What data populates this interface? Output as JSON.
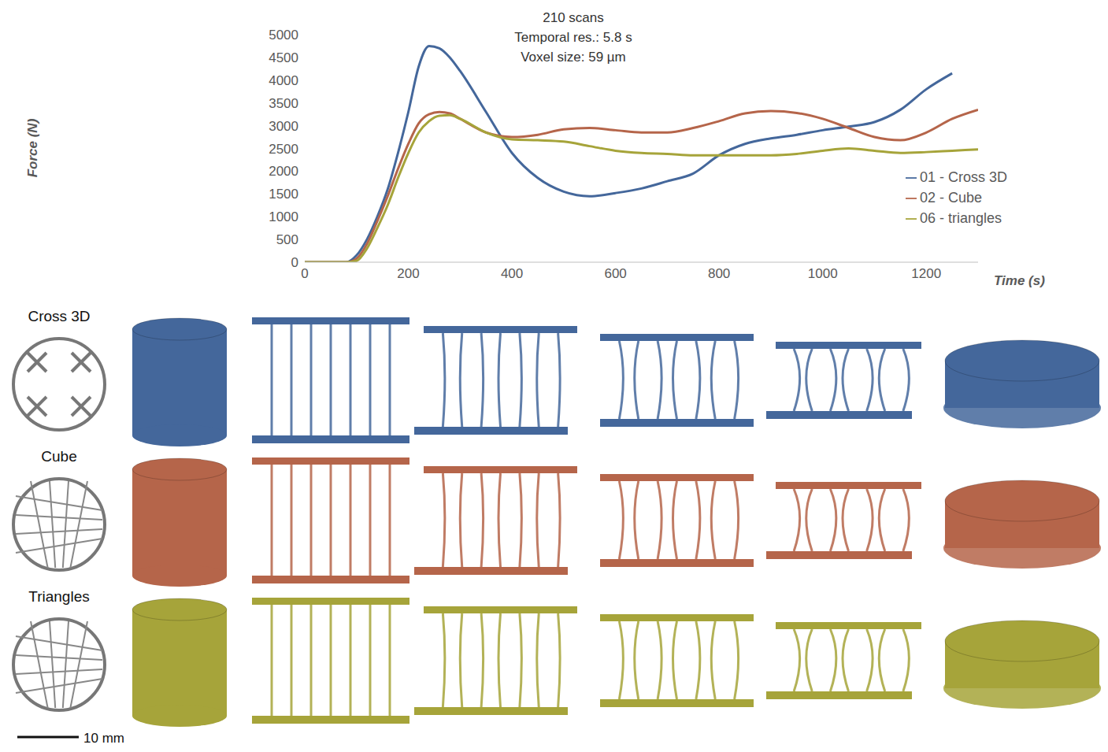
{
  "chart_data": {
    "type": "line",
    "annotation": [
      "210 scans",
      "Temporal res.: 5.8 s",
      "Voxel size: 59 µm"
    ],
    "x_label": "Time (s)",
    "y_label": "Force (N)",
    "x": [
      0,
      80,
      100,
      120,
      140,
      160,
      180,
      200,
      220,
      240,
      260,
      280,
      300,
      350,
      400,
      450,
      500,
      550,
      600,
      650,
      700,
      750,
      800,
      850,
      900,
      950,
      1000,
      1050,
      1100,
      1150,
      1200,
      1250,
      1300
    ],
    "series": [
      {
        "name": "01 - Cross 3D",
        "color": "#44679b",
        "values": [
          0,
          0,
          150,
          500,
          1000,
          1600,
          2400,
          3300,
          4300,
          4750,
          4700,
          4500,
          4200,
          3300,
          2400,
          1850,
          1550,
          1450,
          1520,
          1620,
          1780,
          1950,
          2350,
          2600,
          2720,
          2800,
          2900,
          2980,
          3080,
          3350,
          3800,
          4150,
          null
        ]
      },
      {
        "name": "02 - Cube",
        "color": "#b5654a",
        "values": [
          0,
          0,
          80,
          400,
          900,
          1450,
          2050,
          2600,
          3050,
          3250,
          3300,
          3270,
          3150,
          2850,
          2750,
          2800,
          2920,
          2950,
          2900,
          2850,
          2850,
          2950,
          3100,
          3270,
          3320,
          3280,
          3150,
          2950,
          2750,
          2680,
          2850,
          3150,
          3350
        ]
      },
      {
        "name": "06 - triangles",
        "color": "#a6a43a",
        "values": [
          0,
          0,
          30,
          300,
          750,
          1250,
          1850,
          2400,
          2850,
          3100,
          3220,
          3230,
          3150,
          2850,
          2700,
          2680,
          2650,
          2550,
          2450,
          2400,
          2380,
          2350,
          2350,
          2350,
          2350,
          2380,
          2450,
          2500,
          2450,
          2400,
          2420,
          2450,
          2480
        ]
      }
    ],
    "xlim": [
      0,
      1300
    ],
    "xticks": [
      0,
      200,
      400,
      600,
      800,
      1000,
      1200
    ],
    "ylim": [
      0,
      5000
    ],
    "yticks": [
      0,
      500,
      1000,
      1500,
      2000,
      2500,
      3000,
      3500,
      4000,
      4500,
      5000
    ],
    "grid": false,
    "legend": "lower right"
  },
  "panels": {
    "rows": [
      {
        "label": "Cross 3D",
        "color": "#44679b"
      },
      {
        "label": "Cube",
        "color": "#b5654a"
      },
      {
        "label": "Triangles",
        "color": "#a6a43a"
      }
    ],
    "scale_bar": "10 mm"
  }
}
